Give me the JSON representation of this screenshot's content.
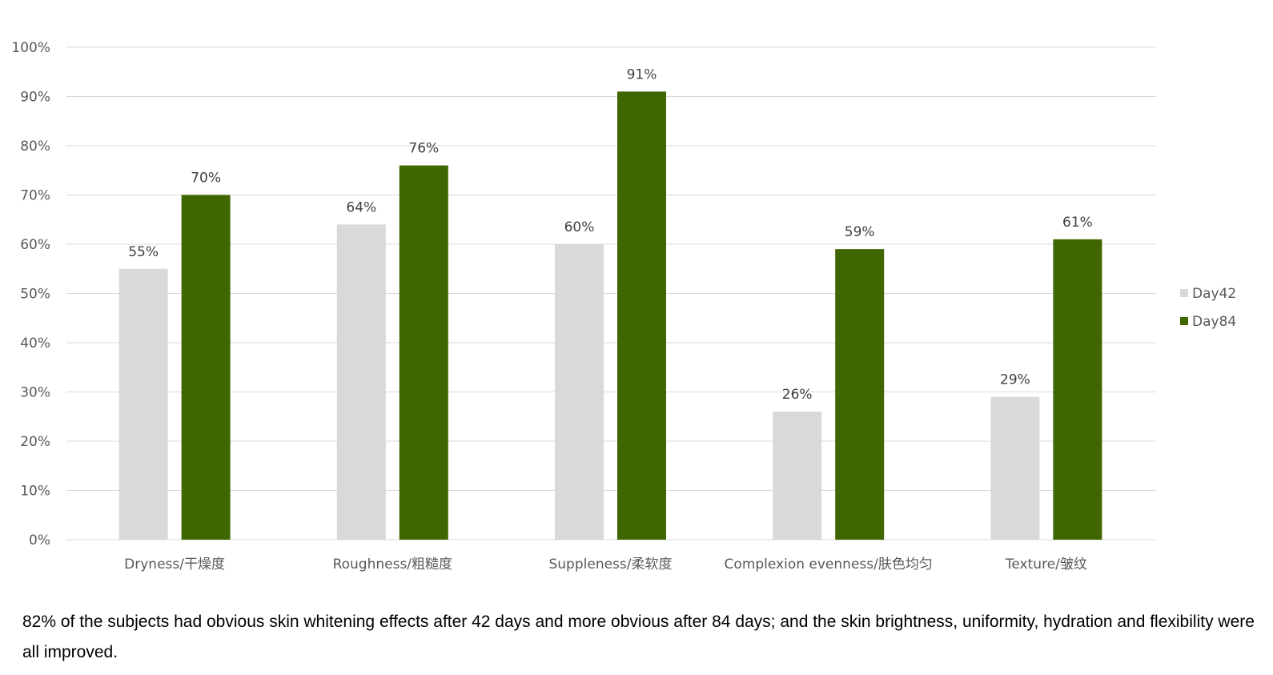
{
  "chart_data": {
    "type": "bar",
    "title": "",
    "xlabel": "",
    "ylabel": "",
    "ylim": [
      0,
      100
    ],
    "yticks": [
      "0%",
      "10%",
      "20%",
      "30%",
      "40%",
      "50%",
      "60%",
      "70%",
      "80%",
      "90%",
      "100%"
    ],
    "ytick_values": [
      0,
      10,
      20,
      30,
      40,
      50,
      60,
      70,
      80,
      90,
      100
    ],
    "grid": true,
    "legend_position": "right",
    "categories": [
      "Dryness/干燥度",
      "Roughness/粗糙度",
      "Suppleness/柔软度",
      "Complexion evenness/肤色均匀",
      "Texture/皱纹"
    ],
    "series": [
      {
        "name": "Day42",
        "color": "#d9d9d9",
        "values": [
          55,
          64,
          60,
          26,
          29
        ],
        "labels": [
          "55%",
          "64%",
          "60%",
          "26%",
          "29%"
        ]
      },
      {
        "name": "Day84",
        "color": "#3f6600",
        "values": [
          70,
          76,
          91,
          59,
          61
        ],
        "labels": [
          "70%",
          "76%",
          "91%",
          "59%",
          "61%"
        ]
      }
    ]
  },
  "caption": "82% of the subjects had obvious skin whitening effects after 42 days and more obvious after 84 days; and the skin brightness, uniformity, hydration and flexibility were all improved.",
  "colors": {
    "gridline": "#d9d9d9",
    "axis_text": "#595959",
    "label_text": "#404040"
  }
}
